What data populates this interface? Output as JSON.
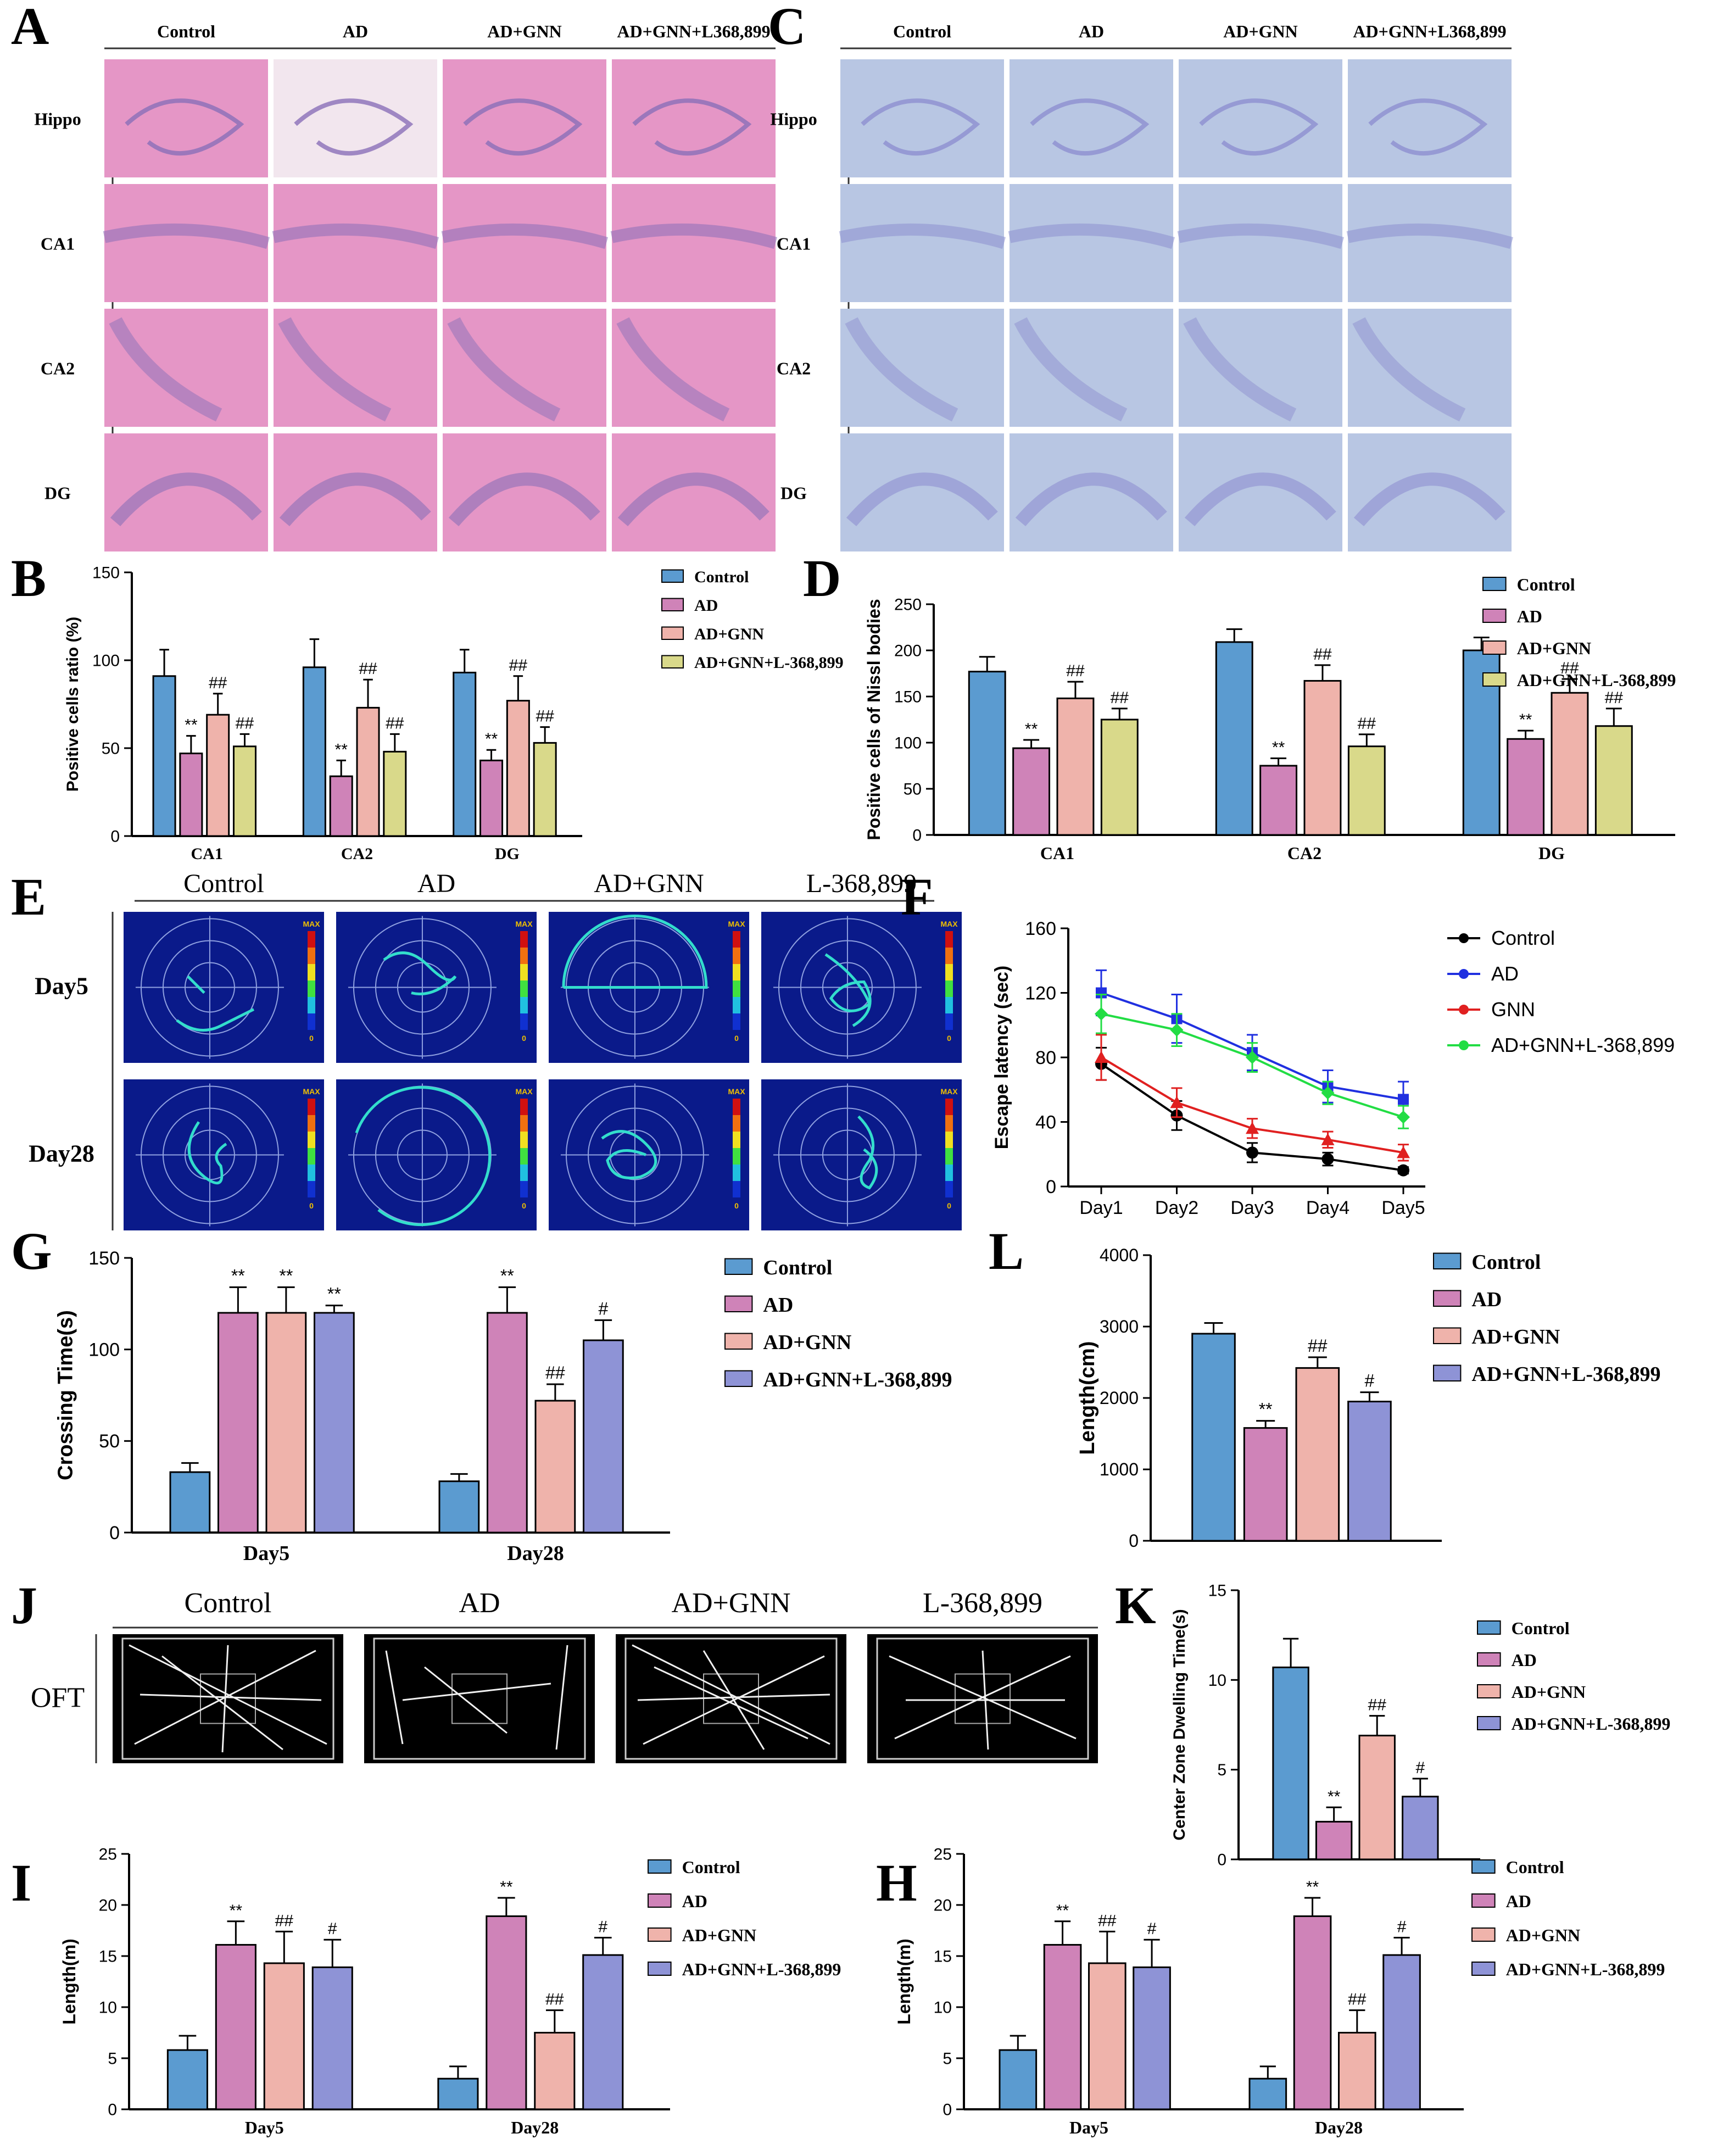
{
  "colors": {
    "control": "#5b9bd0",
    "ad": "#cf83b8",
    "gnn": "#efb3ab",
    "l368_yellow": "#d9d98a",
    "l368_purple": "#8e93d6",
    "he_pink": "#e596c6",
    "nissl_blue": "#b8c6e3",
    "track_bg": "#0a1a8a",
    "ofts_bg": "#000000",
    "line_control": "#000000",
    "line_ad": "#2030e0",
    "line_gnn": "#e02020",
    "line_l368": "#22dd44"
  },
  "panelA": {
    "letter": "A",
    "cols": [
      "Control",
      "AD",
      "AD+GNN",
      "AD+GNN+L368,899"
    ],
    "rows": [
      "Hippo",
      "CA1",
      "CA2",
      "DG"
    ]
  },
  "panelC": {
    "letter": "C",
    "cols": [
      "Control",
      "AD",
      "AD+GNN",
      "AD+GNN+L368,899"
    ],
    "rows": [
      "Hippo",
      "CA1",
      "CA2",
      "DG"
    ]
  },
  "panelE": {
    "letter": "E",
    "cols": [
      "Control",
      "AD",
      "AD+GNN",
      "L-368,899"
    ],
    "rows": [
      "Day5",
      "Day28"
    ],
    "scale_top": "MAX",
    "scale_bottom": "0"
  },
  "panelJ": {
    "letter": "J",
    "cols": [
      "Control",
      "AD",
      "AD+GNN",
      "L-368,899"
    ],
    "row": "OFT"
  },
  "chart_data": [
    {
      "id": "B",
      "type": "bar",
      "ylabel": "Positive cells ratio (%)",
      "categories": [
        "CA1",
        "CA2",
        "DG"
      ],
      "ylim": [
        0,
        150
      ],
      "yticks": [
        "0",
        "50",
        "100",
        "150"
      ],
      "series": [
        {
          "name": "Control",
          "values": [
            91,
            96,
            93
          ],
          "err": [
            15,
            16,
            13
          ],
          "marks": [
            "",
            "",
            ""
          ]
        },
        {
          "name": "AD",
          "values": [
            47,
            34,
            43
          ],
          "err": [
            10,
            9,
            6
          ],
          "marks": [
            "**",
            "**",
            "**"
          ]
        },
        {
          "name": "AD+GNN",
          "values": [
            69,
            73,
            77
          ],
          "err": [
            12,
            16,
            14
          ],
          "marks": [
            "##",
            "##",
            "##"
          ]
        },
        {
          "name": "AD+GNN+L-368,899",
          "values": [
            51,
            48,
            53
          ],
          "err": [
            7,
            10,
            9
          ],
          "marks": [
            "##",
            "##",
            "##"
          ]
        }
      ]
    },
    {
      "id": "D",
      "type": "bar",
      "ylabel": "Positive cells of Nissl bodies",
      "categories": [
        "CA1",
        "CA2",
        "DG"
      ],
      "ylim": [
        0,
        250
      ],
      "yticks": [
        "0",
        "50",
        "100",
        "150",
        "200",
        "250"
      ],
      "series": [
        {
          "name": "Control",
          "values": [
            177,
            209,
            200
          ],
          "err": [
            16,
            14,
            14
          ],
          "marks": [
            "",
            "",
            ""
          ]
        },
        {
          "name": "AD",
          "values": [
            94,
            75,
            104
          ],
          "err": [
            9,
            8,
            9
          ],
          "marks": [
            "**",
            "**",
            "**"
          ]
        },
        {
          "name": "AD+GNN",
          "values": [
            148,
            167,
            154
          ],
          "err": [
            18,
            17,
            15
          ],
          "marks": [
            "##",
            "##",
            "##"
          ]
        },
        {
          "name": "AD+GNN+L-368,899",
          "values": [
            125,
            96,
            118
          ],
          "err": [
            12,
            13,
            19
          ],
          "marks": [
            "##",
            "##",
            "##"
          ]
        }
      ]
    },
    {
      "id": "F",
      "type": "line",
      "ylabel": "Escape latency (sec)",
      "categories": [
        "Day1",
        "Day2",
        "Day3",
        "Day4",
        "Day5"
      ],
      "ylim": [
        0,
        160
      ],
      "yticks": [
        "0",
        "40",
        "80",
        "120",
        "160"
      ],
      "series": [
        {
          "name": "Control",
          "values": [
            76,
            44,
            21,
            17,
            10
          ],
          "err": [
            10,
            9,
            6,
            4,
            2
          ],
          "marker": "circle"
        },
        {
          "name": "AD",
          "values": [
            120,
            104,
            83,
            62,
            54
          ],
          "err": [
            14,
            15,
            11,
            10,
            11
          ],
          "marker": "square"
        },
        {
          "name": "GNN",
          "values": [
            80,
            52,
            36,
            29,
            21
          ],
          "err": [
            14,
            9,
            6,
            5,
            5
          ],
          "marker": "triangle"
        },
        {
          "name": "AD+GNN+L-368,899",
          "values": [
            107,
            97,
            80,
            58,
            43
          ],
          "err": [
            12,
            10,
            9,
            7,
            7
          ],
          "marker": "diamond"
        }
      ]
    },
    {
      "id": "G",
      "type": "bar",
      "ylabel": "Crossing Time(s)",
      "categories": [
        "Day5",
        "Day28"
      ],
      "ylim": [
        0,
        150
      ],
      "yticks": [
        "0",
        "50",
        "100",
        "150"
      ],
      "series": [
        {
          "name": "Control",
          "values": [
            33,
            28
          ],
          "err": [
            5,
            4
          ],
          "marks": [
            "",
            ""
          ]
        },
        {
          "name": "AD",
          "values": [
            120,
            120
          ],
          "err": [
            14,
            14
          ],
          "marks": [
            "**",
            "**"
          ]
        },
        {
          "name": "AD+GNN",
          "values": [
            120,
            72
          ],
          "err": [
            14,
            9
          ],
          "marks": [
            "**",
            "##"
          ]
        },
        {
          "name": "AD+GNN+L-368,899",
          "values": [
            120,
            105
          ],
          "err": [
            4,
            11
          ],
          "marks": [
            "**",
            "#"
          ]
        }
      ]
    },
    {
      "id": "L",
      "type": "bar",
      "ylabel": "Length(cm)",
      "categories": [
        ""
      ],
      "ylim": [
        0,
        4000
      ],
      "yticks": [
        "0",
        "1000",
        "2000",
        "3000",
        "4000"
      ],
      "series": [
        {
          "name": "Control",
          "values": [
            2900
          ],
          "err": [
            150
          ],
          "marks": [
            ""
          ]
        },
        {
          "name": "AD",
          "values": [
            1580
          ],
          "err": [
            100
          ],
          "marks": [
            "**"
          ]
        },
        {
          "name": "AD+GNN",
          "values": [
            2420
          ],
          "err": [
            150
          ],
          "marks": [
            "##"
          ]
        },
        {
          "name": "AD+GNN+L-368,899",
          "values": [
            1950
          ],
          "err": [
            130
          ],
          "marks": [
            "#"
          ]
        }
      ]
    },
    {
      "id": "K",
      "type": "bar",
      "ylabel": "Center Zone Dwelling Time(s)",
      "categories": [
        ""
      ],
      "ylim": [
        0,
        15
      ],
      "yticks": [
        "0",
        "5",
        "10",
        "15"
      ],
      "series": [
        {
          "name": "Control",
          "values": [
            10.7
          ],
          "err": [
            1.6
          ],
          "marks": [
            ""
          ]
        },
        {
          "name": "AD",
          "values": [
            2.1
          ],
          "err": [
            0.8
          ],
          "marks": [
            "**"
          ]
        },
        {
          "name": "AD+GNN",
          "values": [
            6.9
          ],
          "err": [
            1.1
          ],
          "marks": [
            "##"
          ]
        },
        {
          "name": "AD+GNN+L-368,899",
          "values": [
            3.5
          ],
          "err": [
            1.0
          ],
          "marks": [
            "#"
          ]
        }
      ]
    },
    {
      "id": "I",
      "type": "bar",
      "ylabel": "Length(m)",
      "categories": [
        "Day5",
        "Day28"
      ],
      "ylim": [
        0,
        25
      ],
      "yticks": [
        "0",
        "5",
        "10",
        "15",
        "20",
        "25"
      ],
      "series": [
        {
          "name": "Control",
          "values": [
            5.8,
            3.0
          ],
          "err": [
            1.4,
            1.2
          ],
          "marks": [
            "",
            ""
          ]
        },
        {
          "name": "AD",
          "values": [
            16.1,
            18.9
          ],
          "err": [
            2.3,
            1.8
          ],
          "marks": [
            "**",
            "**"
          ]
        },
        {
          "name": "AD+GNN",
          "values": [
            14.3,
            7.5
          ],
          "err": [
            3.1,
            2.2
          ],
          "marks": [
            "##",
            "##"
          ]
        },
        {
          "name": "AD+GNN+L-368,899",
          "values": [
            13.9,
            15.1
          ],
          "err": [
            2.7,
            1.7
          ],
          "marks": [
            "#",
            "#"
          ]
        }
      ]
    },
    {
      "id": "H",
      "type": "bar",
      "ylabel": "Length(m)",
      "categories": [
        "Day5",
        "Day28"
      ],
      "ylim": [
        0,
        25
      ],
      "yticks": [
        "0",
        "5",
        "10",
        "15",
        "20",
        "25"
      ],
      "series": [
        {
          "name": "Control",
          "values": [
            5.8,
            3.0
          ],
          "err": [
            1.4,
            1.2
          ],
          "marks": [
            "",
            ""
          ]
        },
        {
          "name": "AD",
          "values": [
            16.1,
            18.9
          ],
          "err": [
            2.3,
            1.8
          ],
          "marks": [
            "**",
            "**"
          ]
        },
        {
          "name": "AD+GNN",
          "values": [
            14.3,
            7.5
          ],
          "err": [
            3.1,
            2.2
          ],
          "marks": [
            "##",
            "##"
          ]
        },
        {
          "name": "AD+GNN+L-368,899",
          "values": [
            13.9,
            15.1
          ],
          "err": [
            2.7,
            1.7
          ],
          "marks": [
            "#",
            "#"
          ]
        }
      ]
    }
  ]
}
